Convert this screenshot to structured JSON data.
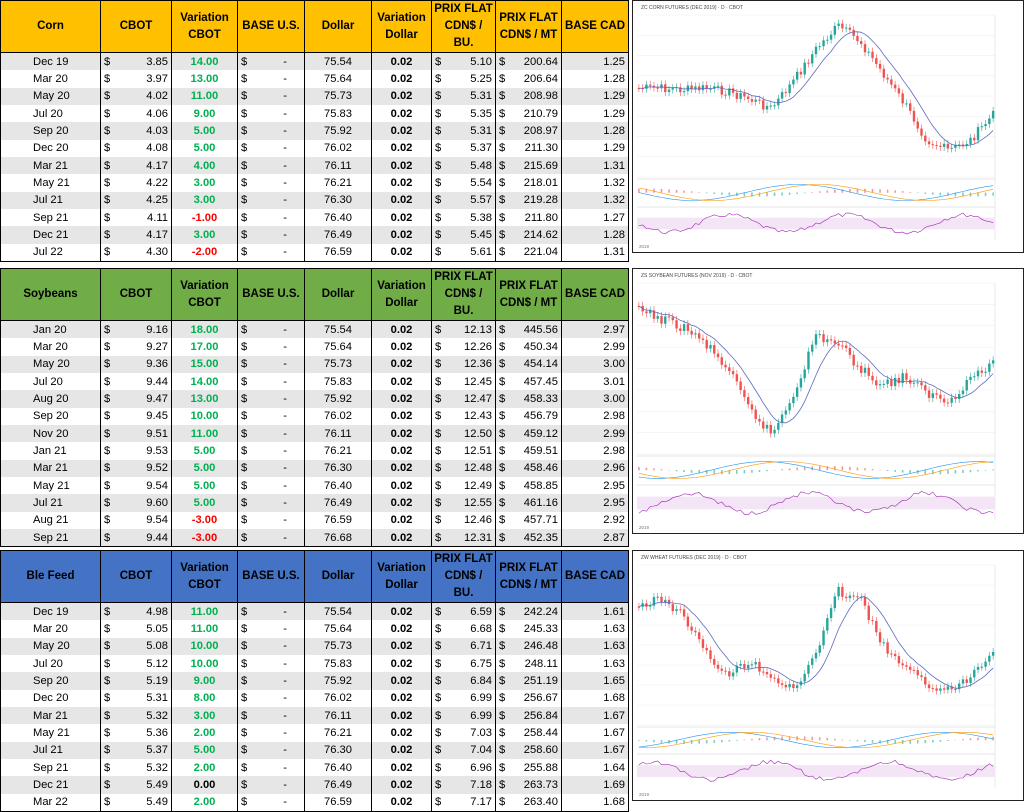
{
  "colors": {
    "corn_header": "#ffc000",
    "soybeans_header": "#70ad47",
    "wheat_header": "#4472c4",
    "positive": "#00b050",
    "negative": "#ff0000",
    "row_shade": "#e7e6e6"
  },
  "columns": {
    "cbot": "CBOT",
    "variation_cbot_1": "Variation",
    "variation_cbot_2": "CBOT",
    "base_us": "BASE U.S.",
    "dollar": "Dollar",
    "variation_dollar_1": "Variation",
    "variation_dollar_2": "Dollar",
    "prix_flat_bu_1": "PRIX FLAT",
    "prix_flat_bu_2": "CDN$ / BU.",
    "prix_flat_mt_1": "PRIX FLAT",
    "prix_flat_mt_2": "CDN$ / MT",
    "base_cad": "BASE CAD"
  },
  "currency_symbol": "$",
  "dash": "-",
  "sections": [
    {
      "name": "Corn",
      "rows": [
        {
          "month": "Dec 19",
          "cbot": "3.85",
          "var": "14.00",
          "dollar": "75.54",
          "dvar": "0.02",
          "bu": "5.10",
          "mt": "200.64",
          "cad": "1.25"
        },
        {
          "month": "Mar 20",
          "cbot": "3.97",
          "var": "13.00",
          "dollar": "75.64",
          "dvar": "0.02",
          "bu": "5.25",
          "mt": "206.64",
          "cad": "1.28"
        },
        {
          "month": "May 20",
          "cbot": "4.02",
          "var": "11.00",
          "dollar": "75.73",
          "dvar": "0.02",
          "bu": "5.31",
          "mt": "208.98",
          "cad": "1.29"
        },
        {
          "month": "Jul 20",
          "cbot": "4.06",
          "var": "9.00",
          "dollar": "75.83",
          "dvar": "0.02",
          "bu": "5.35",
          "mt": "210.79",
          "cad": "1.29"
        },
        {
          "month": "Sep 20",
          "cbot": "4.03",
          "var": "5.00",
          "dollar": "75.92",
          "dvar": "0.02",
          "bu": "5.31",
          "mt": "208.97",
          "cad": "1.28"
        },
        {
          "month": "Dec 20",
          "cbot": "4.08",
          "var": "5.00",
          "dollar": "76.02",
          "dvar": "0.02",
          "bu": "5.37",
          "mt": "211.30",
          "cad": "1.29"
        },
        {
          "month": "Mar 21",
          "cbot": "4.17",
          "var": "4.00",
          "dollar": "76.11",
          "dvar": "0.02",
          "bu": "5.48",
          "mt": "215.69",
          "cad": "1.31"
        },
        {
          "month": "May 21",
          "cbot": "4.22",
          "var": "3.00",
          "dollar": "76.21",
          "dvar": "0.02",
          "bu": "5.54",
          "mt": "218.01",
          "cad": "1.32"
        },
        {
          "month": "Jul 21",
          "cbot": "4.25",
          "var": "3.00",
          "dollar": "76.30",
          "dvar": "0.02",
          "bu": "5.57",
          "mt": "219.28",
          "cad": "1.32"
        },
        {
          "month": "Sep 21",
          "cbot": "4.11",
          "var": "-1.00",
          "dollar": "76.40",
          "dvar": "0.02",
          "bu": "5.38",
          "mt": "211.80",
          "cad": "1.27"
        },
        {
          "month": "Dec 21",
          "cbot": "4.17",
          "var": "3.00",
          "dollar": "76.49",
          "dvar": "0.02",
          "bu": "5.45",
          "mt": "214.62",
          "cad": "1.28"
        },
        {
          "month": "Jul 22",
          "cbot": "4.30",
          "var": "-2.00",
          "dollar": "76.59",
          "dvar": "0.02",
          "bu": "5.61",
          "mt": "221.04",
          "cad": "1.31"
        }
      ],
      "chart_title": "ZC CORN FUTURES (DEC 2019) · D · CBOT",
      "chart_year": "2019"
    },
    {
      "name": "Soybeans",
      "rows": [
        {
          "month": "Jan 20",
          "cbot": "9.16",
          "var": "18.00",
          "dollar": "75.54",
          "dvar": "0.02",
          "bu": "12.13",
          "mt": "445.56",
          "cad": "2.97"
        },
        {
          "month": "Mar 20",
          "cbot": "9.27",
          "var": "17.00",
          "dollar": "75.64",
          "dvar": "0.02",
          "bu": "12.26",
          "mt": "450.34",
          "cad": "2.99"
        },
        {
          "month": "May 20",
          "cbot": "9.36",
          "var": "15.00",
          "dollar": "75.73",
          "dvar": "0.02",
          "bu": "12.36",
          "mt": "454.14",
          "cad": "3.00"
        },
        {
          "month": "Jul 20",
          "cbot": "9.44",
          "var": "14.00",
          "dollar": "75.83",
          "dvar": "0.02",
          "bu": "12.45",
          "mt": "457.45",
          "cad": "3.01"
        },
        {
          "month": "Aug 20",
          "cbot": "9.47",
          "var": "13.00",
          "dollar": "75.92",
          "dvar": "0.02",
          "bu": "12.47",
          "mt": "458.33",
          "cad": "3.00"
        },
        {
          "month": "Sep 20",
          "cbot": "9.45",
          "var": "10.00",
          "dollar": "76.02",
          "dvar": "0.02",
          "bu": "12.43",
          "mt": "456.79",
          "cad": "2.98"
        },
        {
          "month": "Nov 20",
          "cbot": "9.51",
          "var": "11.00",
          "dollar": "76.11",
          "dvar": "0.02",
          "bu": "12.50",
          "mt": "459.12",
          "cad": "2.99"
        },
        {
          "month": "Jan 21",
          "cbot": "9.53",
          "var": "5.00",
          "dollar": "76.21",
          "dvar": "0.02",
          "bu": "12.51",
          "mt": "459.51",
          "cad": "2.98"
        },
        {
          "month": "Mar 21",
          "cbot": "9.52",
          "var": "5.00",
          "dollar": "76.30",
          "dvar": "0.02",
          "bu": "12.48",
          "mt": "458.46",
          "cad": "2.96"
        },
        {
          "month": "May 21",
          "cbot": "9.54",
          "var": "5.00",
          "dollar": "76.40",
          "dvar": "0.02",
          "bu": "12.49",
          "mt": "458.85",
          "cad": "2.95"
        },
        {
          "month": "Jul 21",
          "cbot": "9.60",
          "var": "5.00",
          "dollar": "76.49",
          "dvar": "0.02",
          "bu": "12.55",
          "mt": "461.16",
          "cad": "2.95"
        },
        {
          "month": "Aug 21",
          "cbot": "9.54",
          "var": "-3.00",
          "dollar": "76.59",
          "dvar": "0.02",
          "bu": "12.46",
          "mt": "457.71",
          "cad": "2.92"
        },
        {
          "month": "Sep 21",
          "cbot": "9.44",
          "var": "-3.00",
          "dollar": "76.68",
          "dvar": "0.02",
          "bu": "12.31",
          "mt": "452.35",
          "cad": "2.87"
        }
      ],
      "chart_title": "ZS SOYBEAN FUTURES (NOV 2019) · D · CBOT",
      "chart_year": "2019"
    },
    {
      "name": "Ble Feed",
      "rows": [
        {
          "month": "Dec 19",
          "cbot": "4.98",
          "var": "11.00",
          "dollar": "75.54",
          "dvar": "0.02",
          "bu": "6.59",
          "mt": "242.24",
          "cad": "1.61"
        },
        {
          "month": "Mar 20",
          "cbot": "5.05",
          "var": "11.00",
          "dollar": "75.64",
          "dvar": "0.02",
          "bu": "6.68",
          "mt": "245.33",
          "cad": "1.63"
        },
        {
          "month": "May 20",
          "cbot": "5.08",
          "var": "10.00",
          "dollar": "75.73",
          "dvar": "0.02",
          "bu": "6.71",
          "mt": "246.48",
          "cad": "1.63"
        },
        {
          "month": "Jul 20",
          "cbot": "5.12",
          "var": "10.00",
          "dollar": "75.83",
          "dvar": "0.02",
          "bu": "6.75",
          "mt": "248.11",
          "cad": "1.63"
        },
        {
          "month": "Sep 20",
          "cbot": "5.19",
          "var": "9.00",
          "dollar": "75.92",
          "dvar": "0.02",
          "bu": "6.84",
          "mt": "251.19",
          "cad": "1.65"
        },
        {
          "month": "Dec 20",
          "cbot": "5.31",
          "var": "8.00",
          "dollar": "76.02",
          "dvar": "0.02",
          "bu": "6.99",
          "mt": "256.67",
          "cad": "1.68"
        },
        {
          "month": "Mar 21",
          "cbot": "5.32",
          "var": "3.00",
          "dollar": "76.11",
          "dvar": "0.02",
          "bu": "6.99",
          "mt": "256.84",
          "cad": "1.67"
        },
        {
          "month": "May 21",
          "cbot": "5.36",
          "var": "2.00",
          "dollar": "76.21",
          "dvar": "0.02",
          "bu": "7.03",
          "mt": "258.44",
          "cad": "1.67"
        },
        {
          "month": "Jul 21",
          "cbot": "5.37",
          "var": "5.00",
          "dollar": "76.30",
          "dvar": "0.02",
          "bu": "7.04",
          "mt": "258.60",
          "cad": "1.67"
        },
        {
          "month": "Sep 21",
          "cbot": "5.32",
          "var": "2.00",
          "dollar": "76.40",
          "dvar": "0.02",
          "bu": "6.96",
          "mt": "255.88",
          "cad": "1.64"
        },
        {
          "month": "Dec 21",
          "cbot": "5.49",
          "var": "0.00",
          "dollar": "76.49",
          "dvar": "0.02",
          "bu": "7.18",
          "mt": "263.73",
          "cad": "1.69"
        },
        {
          "month": "Mar 22",
          "cbot": "5.49",
          "var": "2.00",
          "dollar": "76.59",
          "dvar": "0.02",
          "bu": "7.17",
          "mt": "263.40",
          "cad": "1.68"
        }
      ],
      "chart_title": "ZW WHEAT FUTURES (DEC 2019) · D · CBOT",
      "chart_year": "2019"
    }
  ]
}
